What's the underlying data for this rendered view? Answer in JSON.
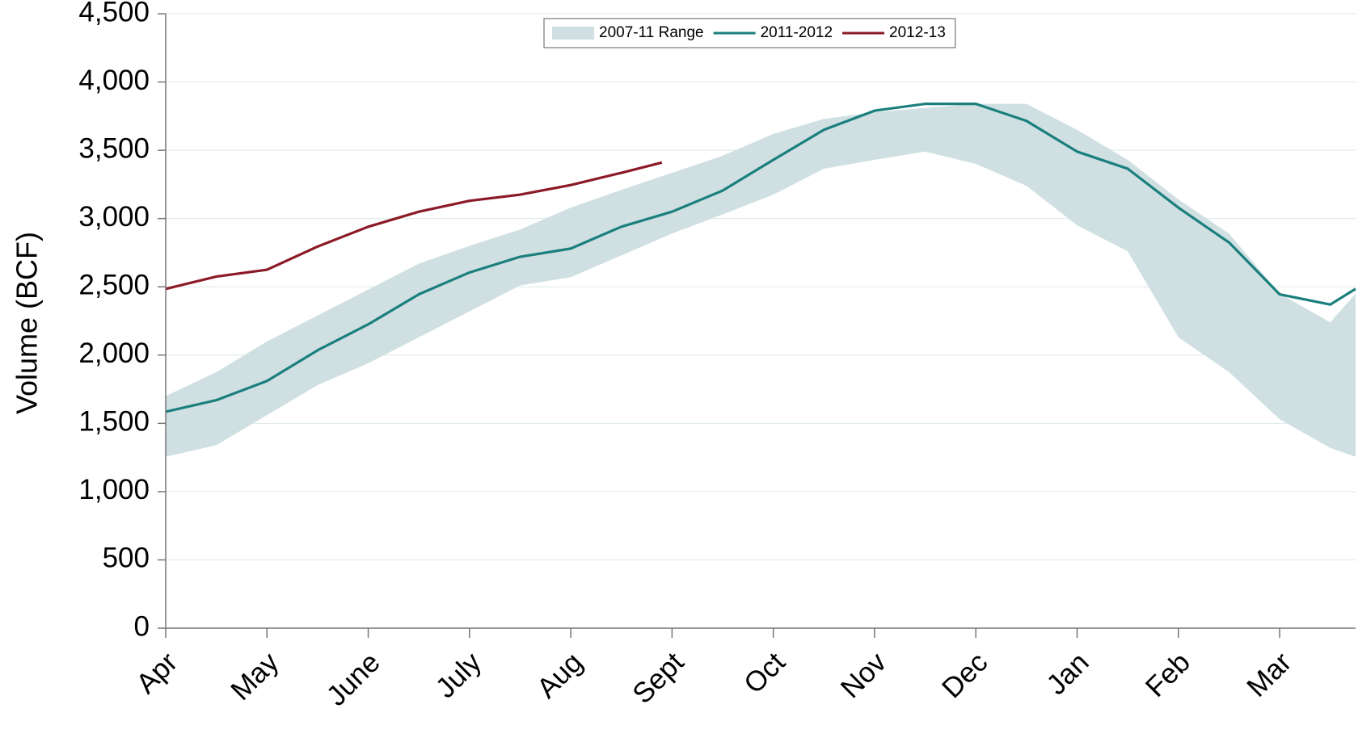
{
  "chart_data": {
    "type": "line",
    "y_label": "Volume (BCF)",
    "x": [
      0,
      0.5,
      1,
      1.5,
      2,
      2.5,
      3,
      3.5,
      4,
      4.5,
      5,
      5.5,
      6,
      6.5,
      7,
      7.5,
      8,
      8.5,
      9,
      9.5,
      10,
      10.5,
      11,
      11.5,
      11.75
    ],
    "xlim": [
      0,
      11.75
    ],
    "xticks": [
      {
        "value": 0,
        "label": "Apr"
      },
      {
        "value": 1,
        "label": "May"
      },
      {
        "value": 2,
        "label": "June"
      },
      {
        "value": 3,
        "label": "July"
      },
      {
        "value": 4,
        "label": "Aug"
      },
      {
        "value": 5,
        "label": "Sept"
      },
      {
        "value": 6,
        "label": "Oct"
      },
      {
        "value": 7,
        "label": "Nov"
      },
      {
        "value": 8,
        "label": "Dec"
      },
      {
        "value": 9,
        "label": "Jan"
      },
      {
        "value": 10,
        "label": "Feb"
      },
      {
        "value": 11,
        "label": "Mar"
      }
    ],
    "ylim": [
      0,
      4500
    ],
    "yticks": [
      0,
      500,
      {
        "value": 1000,
        "label": "1,000"
      },
      {
        "value": 1500,
        "label": "1,500"
      },
      {
        "value": 2000,
        "label": "2,000"
      },
      {
        "value": 2500,
        "label": "2,500"
      },
      {
        "value": 3000,
        "label": "3,000"
      },
      {
        "value": 3500,
        "label": "3,500"
      },
      {
        "value": 4000,
        "label": "4,000"
      },
      {
        "value": 4500,
        "label": "4,500"
      }
    ],
    "grid": true,
    "legend": "top",
    "series": [
      {
        "name": "2007-11 Range",
        "color": "#d0e0e2",
        "upper": [
          1700,
          1875,
          2100,
          2290,
          2480,
          2670,
          2800,
          2920,
          3080,
          3210,
          3335,
          3460,
          3620,
          3730,
          3780,
          3810,
          3840,
          3840,
          3650,
          3430,
          3140,
          2890,
          2450,
          2240,
          2450
        ],
        "lower": [
          1255,
          1340,
          1560,
          1780,
          1940,
          2130,
          2320,
          2510,
          2570,
          2730,
          2890,
          3030,
          3175,
          3365,
          3430,
          3490,
          3400,
          3240,
          2950,
          2760,
          2130,
          1875,
          1530,
          1320,
          1255
        ]
      },
      {
        "name": "2011-2012",
        "color": "#1b7f7d",
        "values": [
          1585,
          1670,
          1810,
          2035,
          2225,
          2445,
          2605,
          2720,
          2780,
          2940,
          3050,
          3205,
          3430,
          3650,
          3790,
          3840,
          3840,
          3715,
          3490,
          3365,
          3080,
          2825,
          2445,
          2370,
          2485
        ]
      },
      {
        "name": "2012-13",
        "color": "#8b1a26",
        "x": [
          0,
          0.5,
          1,
          1.5,
          2,
          2.5,
          3,
          3.5,
          4,
          4.5,
          4.9
        ],
        "values": [
          2485,
          2575,
          2625,
          2795,
          2940,
          3050,
          3130,
          3175,
          3245,
          3335,
          3410
        ]
      }
    ]
  }
}
